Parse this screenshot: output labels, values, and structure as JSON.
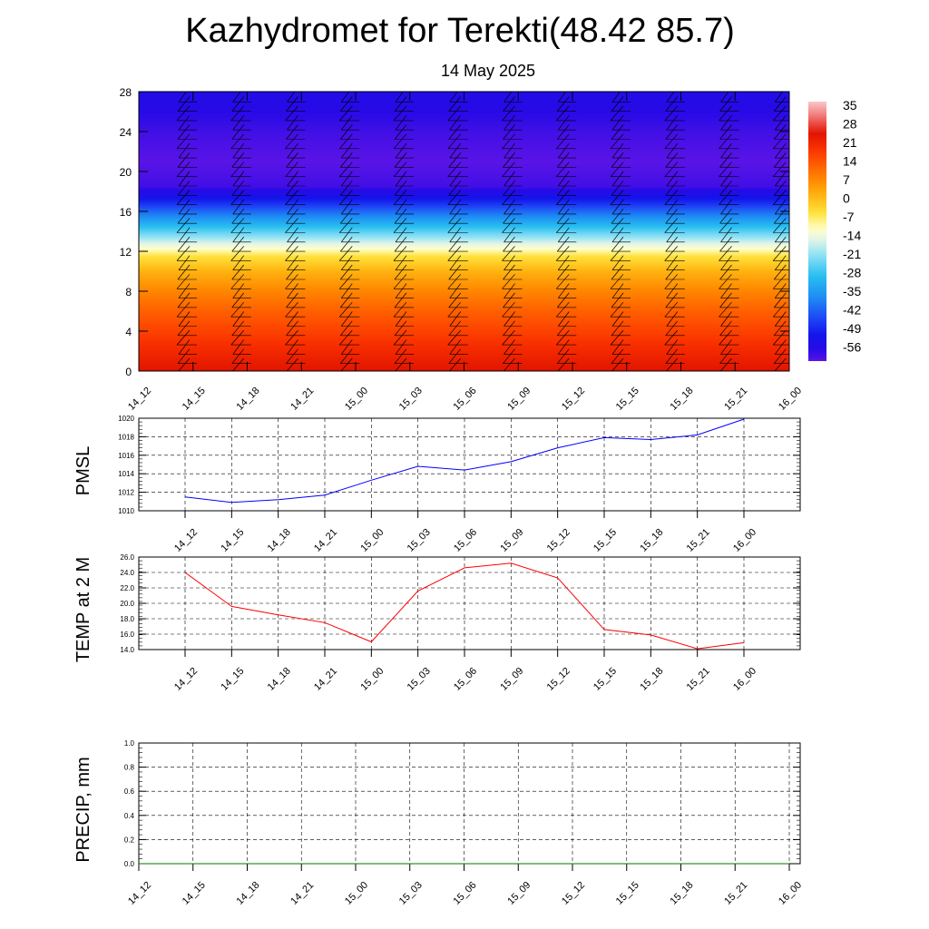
{
  "title": "Kazhydromet for Terekti(48.42 85.7)",
  "subtitle": "14 May 2025",
  "colors": {
    "pmsl_line": "#0000ff",
    "temp_line": "#ff0000",
    "precip_line": "#007700",
    "grid": "#000000"
  },
  "chart_data": [
    {
      "type": "heatmap",
      "name_hidden": true,
      "x_categories": [
        "14_12",
        "14_15",
        "14_18",
        "14_21",
        "15_00",
        "15_03",
        "15_06",
        "15_09",
        "15_12",
        "15_15",
        "15_18",
        "15_21",
        "16_00"
      ],
      "y_ticks": [
        "0",
        "4",
        "8",
        "12",
        "16",
        "20",
        "24",
        "28"
      ],
      "ylim": [
        0,
        28
      ],
      "colorbar": {
        "labels": [
          "35",
          "28",
          "21",
          "14",
          "7",
          "0",
          "-7",
          "-14",
          "-21",
          "-28",
          "-35",
          "-42",
          "-49",
          "-56"
        ],
        "range": [
          -60,
          38
        ]
      },
      "profile": [
        [
          0,
          26
        ],
        [
          2,
          22
        ],
        [
          4,
          18
        ],
        [
          6,
          14
        ],
        [
          8,
          9
        ],
        [
          10,
          3
        ],
        [
          11.5,
          -4
        ],
        [
          12.5,
          -12
        ],
        [
          14,
          -24
        ],
        [
          15.5,
          -36
        ],
        [
          17,
          -48
        ],
        [
          18.5,
          -58
        ],
        [
          21,
          -60
        ],
        [
          24,
          -58
        ],
        [
          26,
          -56
        ],
        [
          28,
          -54
        ]
      ],
      "grid": "on",
      "overlay": "wind barbs"
    },
    {
      "type": "line",
      "ylabel": "PMSL",
      "categories": [
        "14_12",
        "14_15",
        "14_18",
        "14_21",
        "15_00",
        "15_03",
        "15_06",
        "15_09",
        "15_12",
        "15_15",
        "15_18",
        "15_21",
        "16_00"
      ],
      "values": [
        1011.5,
        1010.9,
        1011.2,
        1011.7,
        1013.3,
        1014.8,
        1014.4,
        1015.3,
        1016.8,
        1017.9,
        1017.7,
        1018.2,
        1019.9
      ],
      "y_ticks": [
        "1010",
        "1012",
        "1014",
        "1016",
        "1018",
        "1020"
      ],
      "ylim": [
        1010,
        1020
      ],
      "grid": "on"
    },
    {
      "type": "line",
      "ylabel": "TEMP at 2 M",
      "categories": [
        "14_12",
        "14_15",
        "14_18",
        "14_21",
        "15_00",
        "15_03",
        "15_06",
        "15_09",
        "15_12",
        "15_15",
        "15_18",
        "15_21",
        "16_00"
      ],
      "values": [
        24.0,
        19.6,
        18.5,
        17.5,
        15.0,
        21.6,
        24.6,
        25.2,
        23.3,
        16.6,
        15.9,
        14.1,
        14.9
      ],
      "y_ticks": [
        "14.0",
        "16.0",
        "18.0",
        "20.0",
        "22.0",
        "24.0",
        "26.0"
      ],
      "ylim": [
        14,
        26
      ],
      "grid": "on"
    },
    {
      "type": "line",
      "ylabel": "PRECIP, mm",
      "categories": [
        "14_12",
        "14_15",
        "14_18",
        "14_21",
        "15_00",
        "15_03",
        "15_06",
        "15_09",
        "15_12",
        "15_15",
        "15_18",
        "15_21",
        "16_00"
      ],
      "values": [
        0,
        0,
        0,
        0,
        0,
        0,
        0,
        0,
        0,
        0,
        0,
        0,
        0
      ],
      "y_ticks": [
        "0.0",
        "0.2",
        "0.4",
        "0.6",
        "0.8",
        "1.0"
      ],
      "ylim": [
        0,
        1
      ],
      "grid": "on"
    }
  ]
}
